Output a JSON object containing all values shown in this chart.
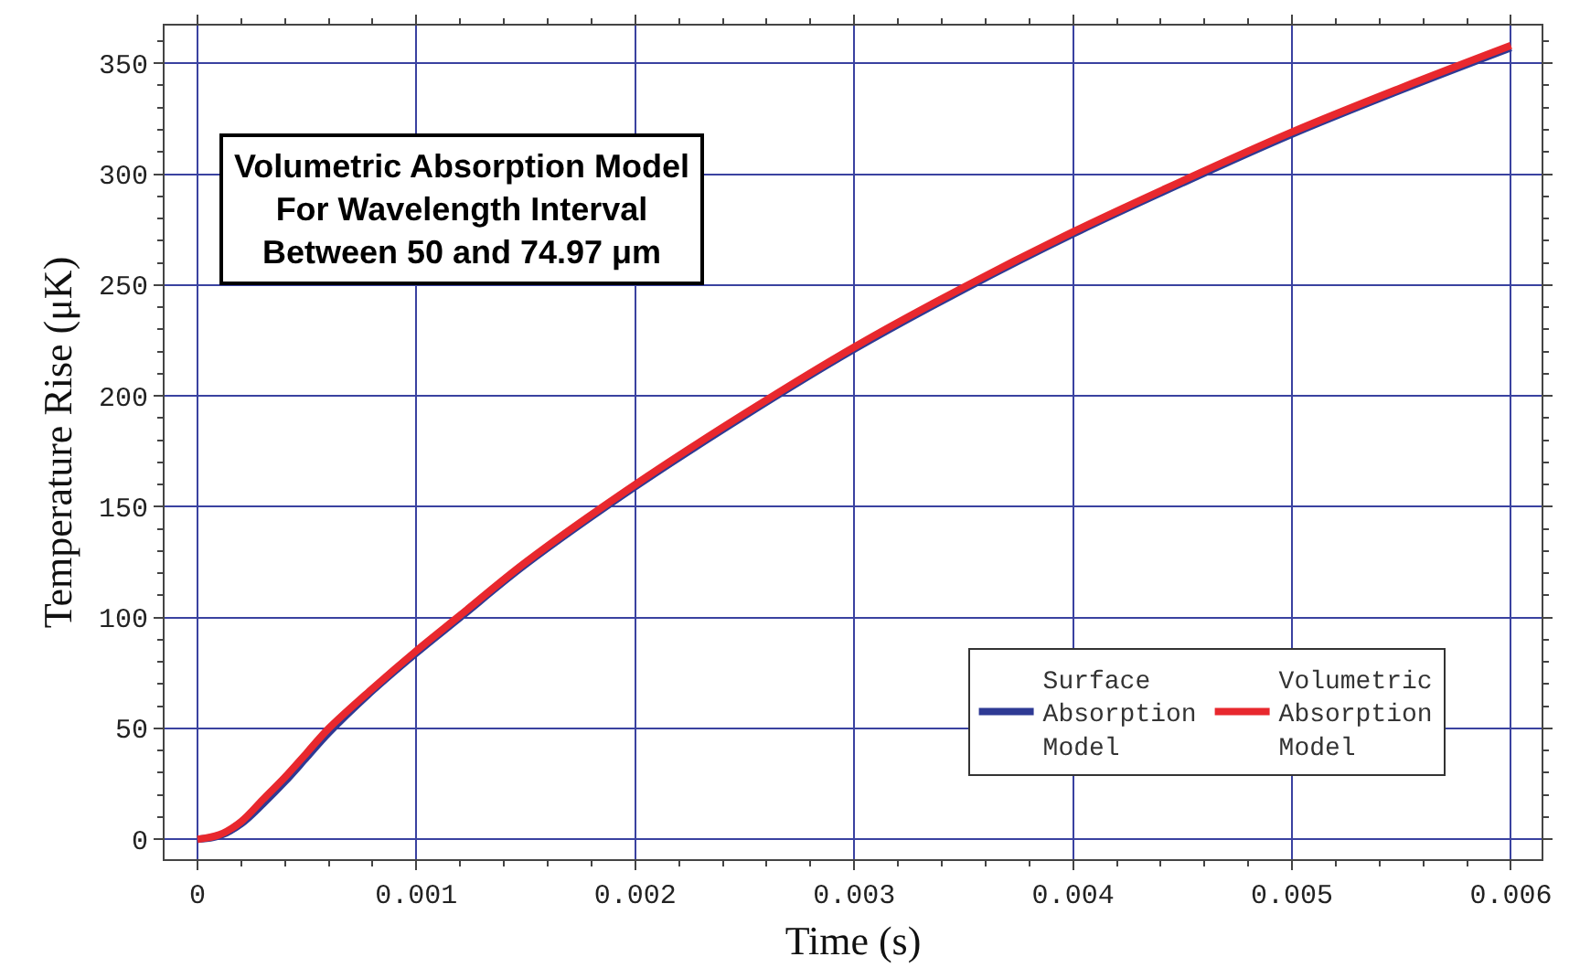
{
  "chart_data": {
    "type": "line",
    "title": "Volumetric Absorption Model\nFor Wavelength Interval\nBetween 50 and 74.97 μm",
    "xlabel": "Time (s)",
    "ylabel": "Temperature Rise (μK)",
    "x": [
      0,
      0.0001,
      0.0002,
      0.0003,
      0.0004,
      0.0005,
      0.0006,
      0.0008,
      0.001,
      0.0012,
      0.0015,
      0.002,
      0.0025,
      0.003,
      0.0035,
      0.004,
      0.0045,
      0.005,
      0.0055,
      0.006
    ],
    "series": [
      {
        "name": "Surface Absorption Model",
        "color": "#2e3a94",
        "values": [
          0,
          1.5,
          7,
          16,
          26,
          37,
          48,
          67,
          84,
          100,
          124,
          159,
          191,
          221,
          248,
          273,
          296,
          318,
          338,
          357
        ]
      },
      {
        "name": "Volumetric Absorption Model",
        "color": "#e8282e",
        "values": [
          0,
          2,
          8,
          18,
          28,
          39,
          50,
          68,
          85,
          101,
          125,
          160,
          192,
          222,
          249,
          274,
          297,
          319,
          339,
          358
        ]
      }
    ],
    "xlim": [
      -0.00015,
      0.00614
    ],
    "ylim": [
      -9,
      367
    ],
    "xticks": [
      0,
      0.001,
      0.002,
      0.003,
      0.004,
      0.005,
      0.006
    ],
    "yticks": [
      0,
      50,
      100,
      150,
      200,
      250,
      300,
      350
    ],
    "grid": true,
    "legend": "bottom right",
    "line_style": "solid",
    "marker": "none"
  }
}
